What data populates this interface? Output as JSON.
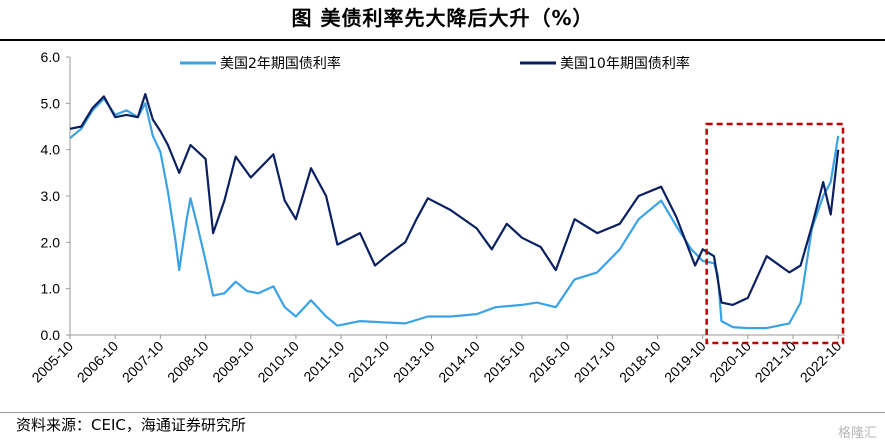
{
  "title": "图  美债利率先大降后大升（%）",
  "source": "资料来源：CEIC，海通证券研究所",
  "watermark": "格隆汇",
  "colors": {
    "us2y": "#3aa3e6",
    "us10y": "#0b2060",
    "highlight": "#c00000",
    "axis": "#9a9a9a"
  },
  "chart_data": {
    "type": "line",
    "title": "美债利率先大降后大升（%）",
    "ylim": [
      0,
      6
    ],
    "y_ticks": [
      "0.0",
      "1.0",
      "2.0",
      "3.0",
      "4.0",
      "5.0",
      "6.0"
    ],
    "x_ticks": [
      "2005-10",
      "2006-10",
      "2007-10",
      "2008-10",
      "2009-10",
      "2010-10",
      "2011-10",
      "2012-10",
      "2013-10",
      "2014-10",
      "2015-10",
      "2016-10",
      "2017-10",
      "2018-10",
      "2019-10",
      "2020-10",
      "2021-10",
      "2022-10"
    ],
    "legend": "top",
    "annotation": "dashed box over 2019-10 to 2022-10",
    "series": [
      {
        "name": "美国2年期国债利率",
        "color": "#3aa3e6",
        "points": [
          [
            "2005-10",
            4.25
          ],
          [
            "2006-01",
            4.45
          ],
          [
            "2006-04",
            4.85
          ],
          [
            "2006-07",
            5.1
          ],
          [
            "2006-10",
            4.75
          ],
          [
            "2007-01",
            4.85
          ],
          [
            "2007-04",
            4.7
          ],
          [
            "2007-06",
            5.0
          ],
          [
            "2007-08",
            4.3
          ],
          [
            "2007-10",
            3.95
          ],
          [
            "2007-12",
            3.1
          ],
          [
            "2008-02",
            2.05
          ],
          [
            "2008-03",
            1.4
          ],
          [
            "2008-05",
            2.5
          ],
          [
            "2008-06",
            2.95
          ],
          [
            "2008-08",
            2.3
          ],
          [
            "2008-10",
            1.6
          ],
          [
            "2008-12",
            0.85
          ],
          [
            "2009-03",
            0.9
          ],
          [
            "2009-06",
            1.15
          ],
          [
            "2009-09",
            0.95
          ],
          [
            "2009-12",
            0.9
          ],
          [
            "2010-04",
            1.05
          ],
          [
            "2010-07",
            0.6
          ],
          [
            "2010-10",
            0.4
          ],
          [
            "2011-02",
            0.75
          ],
          [
            "2011-06",
            0.4
          ],
          [
            "2011-09",
            0.2
          ],
          [
            "2012-03",
            0.3
          ],
          [
            "2012-10",
            0.27
          ],
          [
            "2013-03",
            0.25
          ],
          [
            "2013-09",
            0.4
          ],
          [
            "2014-03",
            0.4
          ],
          [
            "2014-10",
            0.45
          ],
          [
            "2015-03",
            0.6
          ],
          [
            "2015-10",
            0.65
          ],
          [
            "2016-02",
            0.7
          ],
          [
            "2016-07",
            0.6
          ],
          [
            "2016-12",
            1.2
          ],
          [
            "2017-06",
            1.35
          ],
          [
            "2017-12",
            1.85
          ],
          [
            "2018-05",
            2.5
          ],
          [
            "2018-11",
            2.9
          ],
          [
            "2019-03",
            2.35
          ],
          [
            "2019-07",
            1.85
          ],
          [
            "2019-10",
            1.6
          ],
          [
            "2020-01",
            1.55
          ],
          [
            "2020-02",
            1.3
          ],
          [
            "2020-03",
            0.3
          ],
          [
            "2020-06",
            0.17
          ],
          [
            "2020-10",
            0.15
          ],
          [
            "2021-03",
            0.15
          ],
          [
            "2021-09",
            0.25
          ],
          [
            "2021-12",
            0.7
          ],
          [
            "2022-03",
            2.3
          ],
          [
            "2022-06",
            3.0
          ],
          [
            "2022-08",
            3.3
          ],
          [
            "2022-10",
            4.3
          ]
        ]
      },
      {
        "name": "美国10年期国债利率",
        "color": "#0b2060",
        "points": [
          [
            "2005-10",
            4.45
          ],
          [
            "2006-01",
            4.5
          ],
          [
            "2006-04",
            4.9
          ],
          [
            "2006-07",
            5.15
          ],
          [
            "2006-10",
            4.7
          ],
          [
            "2007-01",
            4.75
          ],
          [
            "2007-04",
            4.7
          ],
          [
            "2007-06",
            5.2
          ],
          [
            "2007-08",
            4.65
          ],
          [
            "2007-10",
            4.4
          ],
          [
            "2007-12",
            4.1
          ],
          [
            "2008-03",
            3.5
          ],
          [
            "2008-06",
            4.1
          ],
          [
            "2008-10",
            3.8
          ],
          [
            "2008-12",
            2.2
          ],
          [
            "2009-03",
            2.9
          ],
          [
            "2009-06",
            3.85
          ],
          [
            "2009-10",
            3.4
          ],
          [
            "2010-04",
            3.9
          ],
          [
            "2010-07",
            2.9
          ],
          [
            "2010-10",
            2.5
          ],
          [
            "2011-02",
            3.6
          ],
          [
            "2011-06",
            3.0
          ],
          [
            "2011-09",
            1.95
          ],
          [
            "2012-03",
            2.2
          ],
          [
            "2012-07",
            1.5
          ],
          [
            "2012-10",
            1.7
          ],
          [
            "2013-03",
            2.0
          ],
          [
            "2013-06",
            2.5
          ],
          [
            "2013-09",
            2.95
          ],
          [
            "2014-03",
            2.7
          ],
          [
            "2014-10",
            2.3
          ],
          [
            "2015-02",
            1.85
          ],
          [
            "2015-06",
            2.4
          ],
          [
            "2015-10",
            2.1
          ],
          [
            "2016-03",
            1.9
          ],
          [
            "2016-07",
            1.4
          ],
          [
            "2016-12",
            2.5
          ],
          [
            "2017-06",
            2.2
          ],
          [
            "2017-12",
            2.4
          ],
          [
            "2018-05",
            3.0
          ],
          [
            "2018-11",
            3.2
          ],
          [
            "2019-03",
            2.55
          ],
          [
            "2019-08",
            1.5
          ],
          [
            "2019-10",
            1.85
          ],
          [
            "2020-01",
            1.7
          ],
          [
            "2020-03",
            0.7
          ],
          [
            "2020-06",
            0.65
          ],
          [
            "2020-10",
            0.8
          ],
          [
            "2021-03",
            1.7
          ],
          [
            "2021-09",
            1.35
          ],
          [
            "2021-12",
            1.5
          ],
          [
            "2022-03",
            2.35
          ],
          [
            "2022-06",
            3.3
          ],
          [
            "2022-08",
            2.6
          ],
          [
            "2022-10",
            4.0
          ]
        ]
      }
    ]
  }
}
